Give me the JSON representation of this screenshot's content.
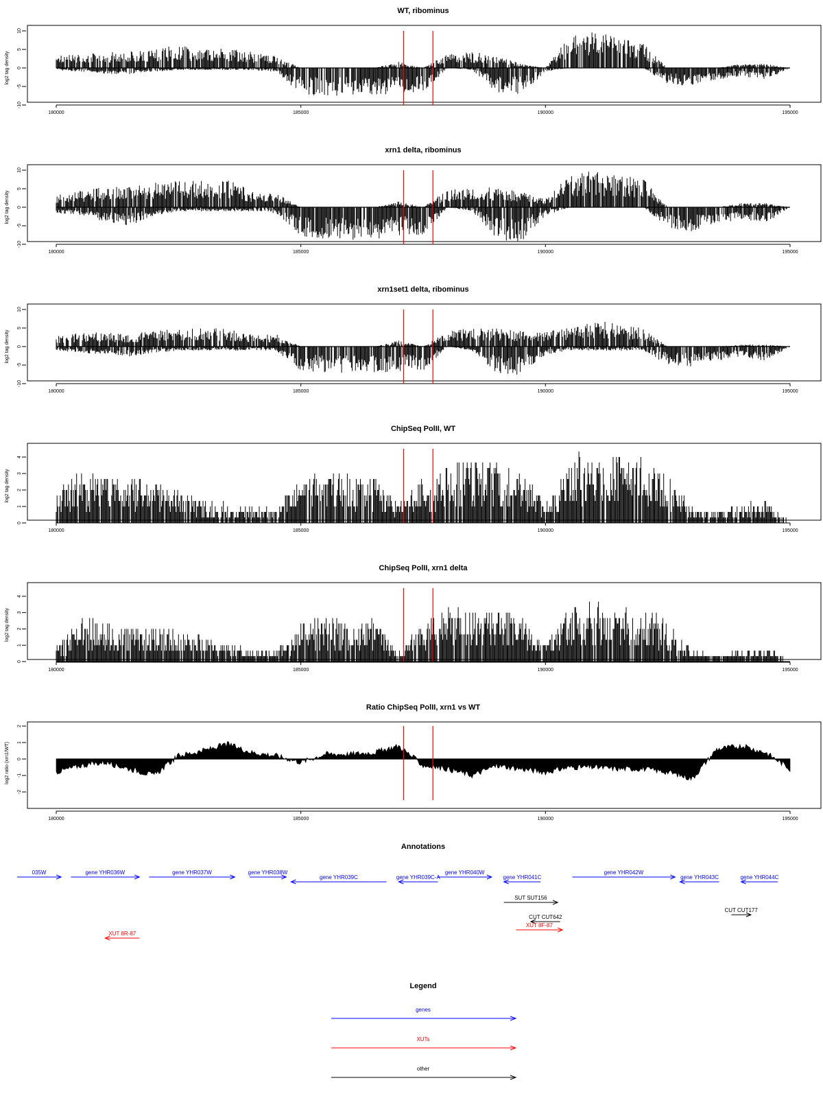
{
  "chart_data": [
    {
      "type": "bar",
      "id": "wt-ribominus",
      "title": "WT, ribominus",
      "ylabel": "log2 tag density",
      "xlim": [
        180000,
        195000
      ],
      "ylim": [
        -10,
        10
      ],
      "xticks": [
        "180000",
        "185000",
        "190000",
        "195000"
      ],
      "yticks": [
        "-10",
        "-5",
        "0",
        "5",
        "10"
      ],
      "x": [
        180000,
        180500,
        181000,
        181500,
        182000,
        182500,
        183000,
        183500,
        184000,
        184500,
        185000,
        185500,
        186000,
        186500,
        187000,
        187500,
        188000,
        188500,
        189000,
        189500,
        190000,
        190500,
        191000,
        191500,
        192000,
        192500,
        193000,
        193500,
        194000,
        194500,
        195000
      ],
      "series": [
        {
          "strand": "plus",
          "values": [
            3,
            3.5,
            4,
            4,
            5,
            5.5,
            5,
            5,
            4,
            3,
            0,
            0,
            0,
            0,
            1.5,
            0,
            3.5,
            4,
            3,
            1,
            0,
            8,
            9,
            8,
            6,
            0,
            0,
            0,
            1,
            1,
            0
          ]
        },
        {
          "strand": "minus",
          "values": [
            -0.5,
            -1,
            -1.5,
            -1.5,
            -1,
            -0.5,
            -0.5,
            -0.5,
            -0.5,
            -1,
            -6.5,
            -7,
            -7,
            -6.5,
            -6.5,
            -6,
            0,
            -0.5,
            -6,
            -6.5,
            -1,
            0,
            0,
            0,
            0,
            -4,
            -5,
            -3,
            -2,
            -3,
            0
          ]
        }
      ],
      "markers_x": [
        187100,
        187700
      ]
    },
    {
      "type": "bar",
      "id": "xrn1-ribominus",
      "title": "xrn1 delta, ribominus",
      "ylabel": "log2 tag density",
      "xlim": [
        180000,
        195000
      ],
      "ylim": [
        -10,
        10
      ],
      "xticks": [
        "180000",
        "185000",
        "190000",
        "195000"
      ],
      "yticks": [
        "-10",
        "-5",
        "0",
        "5",
        "10"
      ],
      "x": [
        180000,
        180500,
        181000,
        181500,
        182000,
        182500,
        183000,
        183500,
        184000,
        184500,
        185000,
        185500,
        186000,
        186500,
        187000,
        187500,
        188000,
        188500,
        189000,
        189500,
        190000,
        190500,
        191000,
        191500,
        192000,
        192500,
        193000,
        193500,
        194000,
        194500,
        195000
      ],
      "series": [
        {
          "strand": "plus",
          "values": [
            3,
            4,
            5,
            5,
            6,
            6.5,
            6.5,
            7,
            4,
            3.5,
            0,
            0,
            0,
            0,
            1.5,
            0,
            4.5,
            5,
            5,
            4,
            2,
            8,
            9,
            8,
            7,
            0,
            0,
            0,
            1,
            1,
            0
          ]
        },
        {
          "strand": "minus",
          "values": [
            -1.5,
            -2,
            -3.5,
            -4.5,
            -2,
            -1,
            -1,
            -1,
            -1,
            -1.5,
            -7,
            -8,
            -8,
            -8,
            -7,
            -7,
            0,
            -1,
            -8,
            -8.5,
            -2,
            0,
            0,
            0,
            0,
            -5,
            -6,
            -4,
            -3,
            -4,
            0
          ]
        }
      ],
      "markers_x": [
        187100,
        187700
      ]
    },
    {
      "type": "bar",
      "id": "xrn1set1-ribominus",
      "title": "xrn1set1 delta, ribominus",
      "ylabel": "log2 tag density",
      "xlim": [
        180000,
        195000
      ],
      "ylim": [
        -10,
        10
      ],
      "xticks": [
        "180000",
        "185000",
        "190000",
        "195000"
      ],
      "yticks": [
        "-10",
        "-5",
        "0",
        "5",
        "10"
      ],
      "x": [
        180000,
        180500,
        181000,
        181500,
        182000,
        182500,
        183000,
        183500,
        184000,
        184500,
        185000,
        185500,
        186000,
        186500,
        187000,
        187500,
        188000,
        188500,
        189000,
        189500,
        190000,
        190500,
        191000,
        191500,
        192000,
        192500,
        193000,
        193500,
        194000,
        194500,
        195000
      ],
      "series": [
        {
          "strand": "plus",
          "values": [
            2.5,
            3.5,
            3.5,
            3,
            4,
            4.5,
            4.5,
            4.5,
            3,
            3,
            0,
            0,
            0,
            0,
            1.5,
            0,
            4,
            4.5,
            4.5,
            4,
            3.5,
            5,
            6.5,
            5.5,
            4.5,
            0,
            0,
            0,
            0.5,
            0.5,
            0
          ]
        },
        {
          "strand": "minus",
          "values": [
            -1,
            -1.5,
            -2,
            -2.5,
            -1.5,
            -1,
            -1,
            -1,
            -1,
            -1,
            -6,
            -6.5,
            -6.5,
            -6.5,
            -6,
            -6,
            0,
            -1,
            -6.5,
            -7,
            -2,
            -1,
            -1,
            -1,
            -1,
            -4.5,
            -5,
            -3.5,
            -2.5,
            -3.5,
            0
          ]
        }
      ],
      "markers_x": [
        187100,
        187700
      ]
    },
    {
      "type": "bar",
      "id": "chipseq-wt",
      "title": "ChipSeq PolII, WT",
      "ylabel": "log2 tag density",
      "xlim": [
        180000,
        195000
      ],
      "ylim": [
        0,
        4.5
      ],
      "xticks": [
        "180000",
        "185000",
        "190000",
        "195000"
      ],
      "yticks": [
        "0",
        "1",
        "2",
        "3",
        "4"
      ],
      "x": [
        180000,
        180500,
        181000,
        181500,
        182000,
        182500,
        183000,
        183500,
        184000,
        184500,
        185000,
        185500,
        186000,
        186500,
        187000,
        187500,
        188000,
        188500,
        189000,
        189500,
        190000,
        190500,
        191000,
        191500,
        192000,
        192500,
        193000,
        193500,
        194000,
        194500,
        195000
      ],
      "values": [
        1.6,
        2.8,
        2.6,
        2.4,
        2.2,
        1.8,
        1.2,
        1.0,
        0.8,
        0.8,
        2.4,
        2.6,
        2.6,
        2.4,
        1.0,
        2.4,
        3.0,
        3.4,
        3.2,
        2.8,
        1.0,
        3.6,
        3.8,
        3.6,
        3.4,
        2.6,
        0.8,
        0.6,
        1.0,
        1.2,
        0
      ],
      "markers_x": [
        187100,
        187700
      ]
    },
    {
      "type": "bar",
      "id": "chipseq-xrn1",
      "title": "ChipSeq PolII, xrn1 delta",
      "ylabel": "log2 tag density",
      "xlim": [
        180000,
        195000
      ],
      "ylim": [
        0,
        4.5
      ],
      "xticks": [
        "180000",
        "185000",
        "190000",
        "195000"
      ],
      "yticks": [
        "0",
        "1",
        "2",
        "3",
        "4"
      ],
      "x": [
        180000,
        180500,
        181000,
        181500,
        182000,
        182500,
        183000,
        183500,
        184000,
        184500,
        185000,
        185500,
        186000,
        186500,
        187000,
        187500,
        188000,
        188500,
        189000,
        189500,
        190000,
        190500,
        191000,
        191500,
        192000,
        192500,
        193000,
        193500,
        194000,
        194500,
        195000
      ],
      "values": [
        0.8,
        2.4,
        2.2,
        1.8,
        1.8,
        1.6,
        1.4,
        1.0,
        0.6,
        0.6,
        2.2,
        2.4,
        2.4,
        2.2,
        0.4,
        2.2,
        2.8,
        3.0,
        2.8,
        2.4,
        1.0,
        3.0,
        3.2,
        3.0,
        3.0,
        2.2,
        0.6,
        0.4,
        0.6,
        0.8,
        0
      ],
      "markers_x": [
        187100,
        187700
      ]
    },
    {
      "type": "area",
      "id": "ratio-chipseq",
      "title": "Ratio ChipSeq PolII, xrn1 vs WT",
      "ylabel": "log2 ratio (xrn1/WT)",
      "xlim": [
        180000,
        195000
      ],
      "ylim": [
        -2.5,
        2
      ],
      "xticks": [
        "180000",
        "185000",
        "190000",
        "195000"
      ],
      "yticks": [
        "-2",
        "-1",
        "0",
        "1",
        "2"
      ],
      "x": [
        180000,
        180500,
        181000,
        181500,
        182000,
        182500,
        183000,
        183500,
        184000,
        184500,
        185000,
        185500,
        186000,
        186500,
        187000,
        187500,
        188000,
        188500,
        189000,
        189500,
        190000,
        190500,
        191000,
        191500,
        192000,
        192500,
        193000,
        193500,
        194000,
        194500,
        195000
      ],
      "values": [
        -0.8,
        -0.4,
        -0.2,
        -0.6,
        -1.0,
        0.2,
        0.5,
        0.9,
        0.4,
        0.2,
        -0.2,
        0.3,
        0.3,
        0.4,
        0.8,
        -0.4,
        -0.6,
        -1.0,
        -0.4,
        -0.6,
        -0.8,
        -0.5,
        -0.5,
        -0.6,
        -0.6,
        -0.8,
        -1.2,
        0.6,
        0.8,
        0.4,
        -0.6
      ],
      "markers_x": [
        187100,
        187700
      ]
    }
  ],
  "annotations": {
    "title": "Annotations",
    "xlim": [
      180000,
      195000
    ],
    "features": [
      {
        "label": "035W",
        "kind": "gene",
        "strand": "+",
        "start": 179200,
        "end": 180100,
        "row": 0
      },
      {
        "label": "gene YHR036W",
        "kind": "gene",
        "strand": "+",
        "start": 180300,
        "end": 181700,
        "row": 0
      },
      {
        "label": "gene YHR037W",
        "kind": "gene",
        "strand": "+",
        "start": 181900,
        "end": 183650,
        "row": 0
      },
      {
        "label": "gene YHR038W",
        "kind": "gene",
        "strand": "+",
        "start": 183950,
        "end": 184700,
        "row": 0
      },
      {
        "label": "gene YHR039C",
        "kind": "gene",
        "strand": "-",
        "start": 184800,
        "end": 186750,
        "row": 1
      },
      {
        "label": "gene YHR039C-A",
        "kind": "gene",
        "strand": "-",
        "start": 187000,
        "end": 187800,
        "row": 1
      },
      {
        "label": "gene YHR040W",
        "kind": "gene",
        "strand": "+",
        "start": 187800,
        "end": 188900,
        "row": 0
      },
      {
        "label": "gene YHR041C",
        "kind": "gene",
        "strand": "-",
        "start": 189150,
        "end": 189900,
        "row": 1
      },
      {
        "label": "gene YHR042W",
        "kind": "gene",
        "strand": "+",
        "start": 190550,
        "end": 192650,
        "row": 0
      },
      {
        "label": "gene YHR043C",
        "kind": "gene",
        "strand": "-",
        "start": 192750,
        "end": 193550,
        "row": 1
      },
      {
        "label": "gene YHR044C",
        "kind": "gene",
        "strand": "-",
        "start": 194000,
        "end": 194750,
        "row": 1
      },
      {
        "label": "SUT SUT156",
        "kind": "other",
        "strand": "+",
        "start": 189150,
        "end": 190250,
        "row": 2
      },
      {
        "label": "CUT CUT642",
        "kind": "other",
        "strand": "-",
        "start": 189700,
        "end": 190300,
        "row": 3
      },
      {
        "label": "XUT 8F-87",
        "kind": "xut",
        "strand": "+",
        "start": 189400,
        "end": 190350,
        "row": 4
      },
      {
        "label": "CUT CUT177",
        "kind": "other",
        "strand": "+",
        "start": 193800,
        "end": 194200,
        "row": 5
      },
      {
        "label": "XUT 8R-87",
        "kind": "xut",
        "strand": "-",
        "start": 181000,
        "end": 181700,
        "row": 6
      }
    ]
  },
  "legend": {
    "title": "Legend",
    "items": [
      {
        "label": "genes",
        "color": "#0000ff"
      },
      {
        "label": "XUTs",
        "color": "#ff0000"
      },
      {
        "label": "other",
        "color": "#000000"
      }
    ]
  },
  "colors": {
    "gene": "#0000ff",
    "xut": "#ff0000",
    "other": "#000000",
    "marker": "#ff0000",
    "bar": "#000000"
  }
}
